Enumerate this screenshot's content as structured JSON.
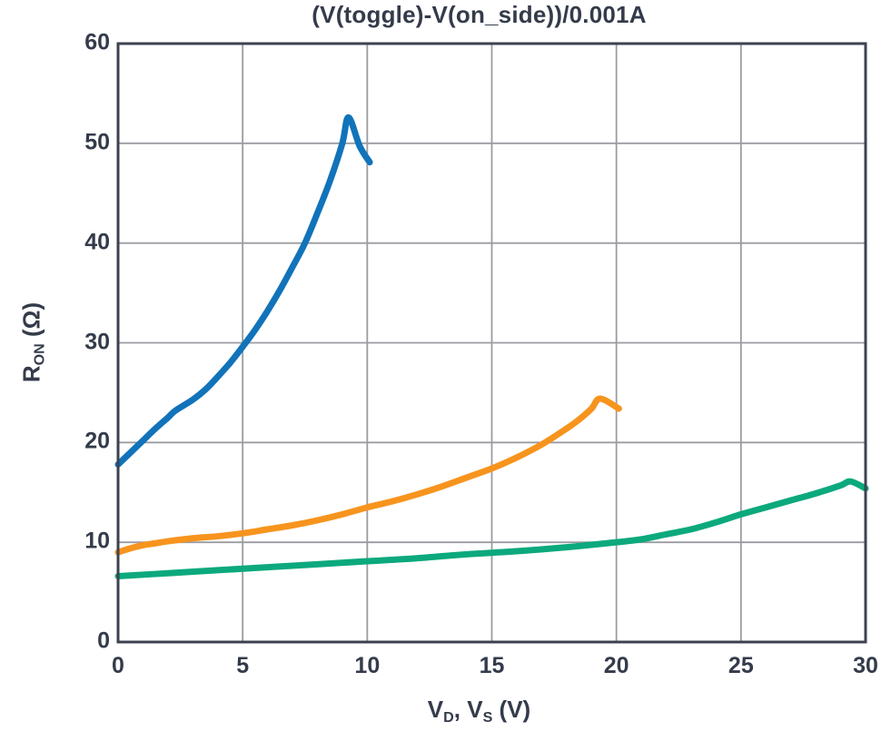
{
  "title": "(V(toggle)-V(on_side))/0.001A",
  "labels": {
    "ylabel_parts": [
      {
        "t": "R"
      },
      {
        "t": "ON",
        "sub": true
      },
      {
        "t": " (Ω)"
      }
    ],
    "xlabel_parts": [
      {
        "t": "V"
      },
      {
        "t": "D",
        "sub": true
      },
      {
        "t": ", V"
      },
      {
        "t": "S",
        "sub": true
      },
      {
        "t": " (V)"
      }
    ]
  },
  "colors": {
    "text": "#343B4A",
    "frame": "#3C424F",
    "grid": "#9A9CA1",
    "blue": "#1173BA",
    "orange": "#F7941E",
    "green": "#0CA97D"
  },
  "chart_data": {
    "type": "line",
    "title": "(V(toggle)-V(on_side))/0.001A",
    "xlabel": "V_D, V_S (V)",
    "ylabel": "R_ON (Ω)",
    "xlim": [
      0,
      30
    ],
    "ylim": [
      0,
      60
    ],
    "x_ticks": [
      0,
      5,
      10,
      15,
      20,
      25,
      30
    ],
    "y_ticks": [
      0,
      10,
      20,
      30,
      40,
      50,
      60
    ],
    "grid": true,
    "legend": "none",
    "series": [
      {
        "name": "blue-curve",
        "color": "#1173BA",
        "points": [
          [
            0,
            17.8
          ],
          [
            0.5,
            19.0
          ],
          [
            1,
            20.2
          ],
          [
            1.5,
            21.4
          ],
          [
            2,
            22.5
          ],
          [
            2.3,
            23.2
          ],
          [
            3,
            24.3
          ],
          [
            3.5,
            25.3
          ],
          [
            4,
            26.6
          ],
          [
            4.5,
            28.0
          ],
          [
            5,
            29.6
          ],
          [
            5.5,
            31.3
          ],
          [
            6,
            33.2
          ],
          [
            6.5,
            35.3
          ],
          [
            7,
            37.6
          ],
          [
            7.5,
            40.0
          ],
          [
            8,
            43.0
          ],
          [
            8.5,
            46.2
          ],
          [
            9,
            50.0
          ],
          [
            9.25,
            52.6
          ],
          [
            9.7,
            49.7
          ],
          [
            10.1,
            48.1
          ]
        ]
      },
      {
        "name": "orange-curve",
        "color": "#F7941E",
        "points": [
          [
            0,
            9.0
          ],
          [
            0.5,
            9.4
          ],
          [
            1,
            9.7
          ],
          [
            1.5,
            9.9
          ],
          [
            2,
            10.1
          ],
          [
            3,
            10.4
          ],
          [
            4,
            10.6
          ],
          [
            5,
            10.9
          ],
          [
            6,
            11.3
          ],
          [
            7,
            11.7
          ],
          [
            8,
            12.2
          ],
          [
            9,
            12.8
          ],
          [
            10,
            13.5
          ],
          [
            11,
            14.1
          ],
          [
            12,
            14.8
          ],
          [
            13,
            15.6
          ],
          [
            14,
            16.5
          ],
          [
            15,
            17.4
          ],
          [
            16,
            18.5
          ],
          [
            17,
            19.8
          ],
          [
            18,
            21.4
          ],
          [
            18.5,
            22.3
          ],
          [
            19,
            23.4
          ],
          [
            19.35,
            24.4
          ],
          [
            20.1,
            23.4
          ]
        ]
      },
      {
        "name": "green-curve",
        "color": "#0CA97D",
        "points": [
          [
            0,
            6.6
          ],
          [
            2,
            6.9
          ],
          [
            4,
            7.2
          ],
          [
            6,
            7.5
          ],
          [
            8,
            7.8
          ],
          [
            10,
            8.1
          ],
          [
            12,
            8.4
          ],
          [
            14,
            8.8
          ],
          [
            16,
            9.1
          ],
          [
            18,
            9.5
          ],
          [
            20,
            10.0
          ],
          [
            21,
            10.3
          ],
          [
            22,
            10.8
          ],
          [
            23,
            11.3
          ],
          [
            24,
            12.0
          ],
          [
            25,
            12.8
          ],
          [
            26,
            13.5
          ],
          [
            27,
            14.2
          ],
          [
            28,
            14.9
          ],
          [
            29,
            15.7
          ],
          [
            29.4,
            16.1
          ],
          [
            30,
            15.4
          ]
        ]
      }
    ]
  }
}
